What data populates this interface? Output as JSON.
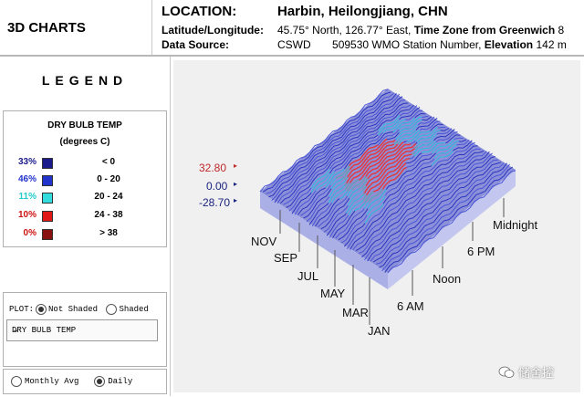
{
  "header": {
    "app_title": "3D CHARTS",
    "location_label": "LOCATION:",
    "location_value": "Harbin, Heilongjiang, CHN",
    "latlon_label": "Latitude/Longitude:",
    "latlon_value": "45.75° North, 126.77° East,",
    "timezone_label": "Time Zone from Greenwich",
    "timezone_value": "8",
    "source_label": "Data Source:",
    "source_value": "CSWD",
    "station_value": "509530 WMO Station Number,",
    "elevation_label": "Elevation",
    "elevation_value": "142 m"
  },
  "legend": {
    "title": "LEGEND",
    "variable": "DRY BULB TEMP",
    "unit": "(degrees C)",
    "rows": [
      {
        "pct": "33%",
        "color": "#1a1a8c",
        "pct_color": "#1a1a8c",
        "range": "< 0"
      },
      {
        "pct": "46%",
        "color": "#2233cc",
        "pct_color": "#2233cc",
        "range": "0   -   20"
      },
      {
        "pct": "11%",
        "color": "#33dddd",
        "pct_color": "#22cccc",
        "range": "20   -   24"
      },
      {
        "pct": "10%",
        "color": "#e01818",
        "pct_color": "#cc1111",
        "range": "24   -   38"
      },
      {
        "pct": "0%",
        "color": "#8a1010",
        "pct_color": "#cc1111",
        "range": "> 38"
      }
    ]
  },
  "plot": {
    "label": "PLOT:",
    "not_shaded": "Not Shaded",
    "shaded": "Shaded",
    "selected_variable": "DRY BULB TEMP",
    "monthly": "Monthly Avg",
    "daily": "Daily"
  },
  "chart": {
    "z_labels": [
      "32.80",
      "0.00",
      "-28.70"
    ],
    "months": [
      "JAN",
      "MAR",
      "MAY",
      "JUL",
      "SEP",
      "NOV"
    ],
    "hours": [
      "6 AM",
      "Noon",
      "6 PM",
      "Midnight"
    ]
  },
  "watermark": "储舍控"
}
